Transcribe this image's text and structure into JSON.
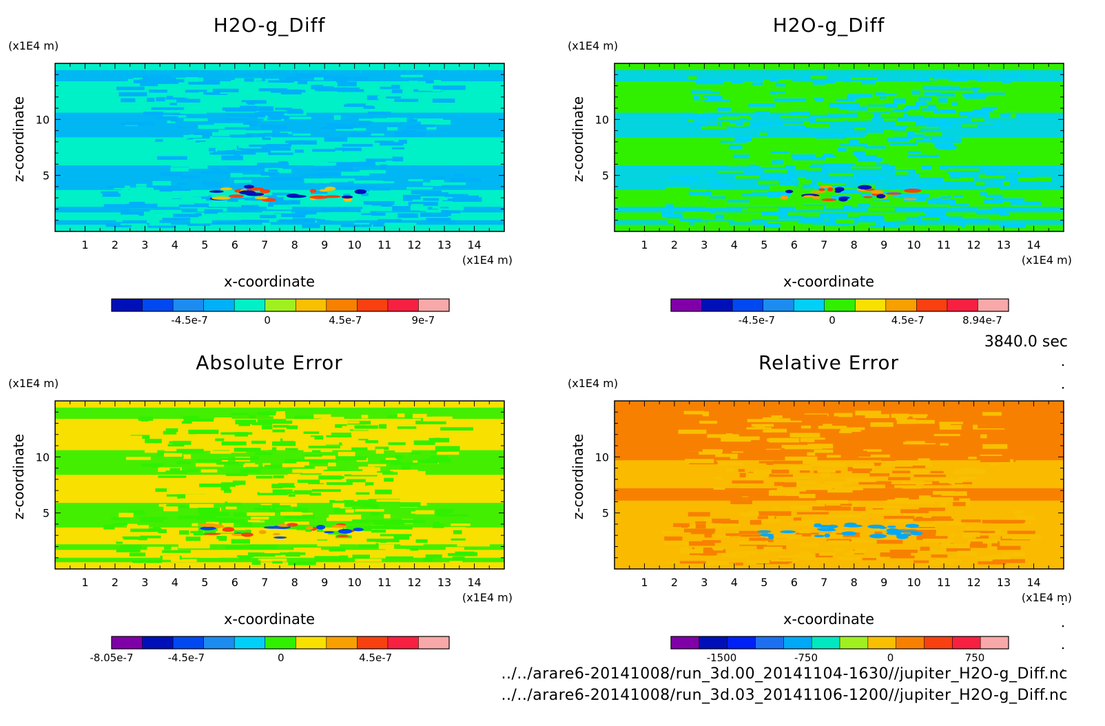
{
  "timestamp": "3840.0 sec",
  "files": [
    "../../arare6-20141008/run_3d.00_20141104-1630//jupiter_H2O-g_Diff.nc",
    "../../arare6-20141008/run_3d.03_20141106-1200//jupiter_H2O-g_Diff.nc"
  ],
  "chart_data": [
    {
      "type": "heatmap",
      "title": "H2O-g_Diff",
      "xlabel": "x-coordinate",
      "ylabel": "z-coordinate",
      "x_unit": "(x1E4 m)",
      "y_unit": "(x1E4 m)",
      "xlim": [
        0,
        15
      ],
      "ylim": [
        0,
        15
      ],
      "x_ticks": [
        "1",
        "2",
        "3",
        "4",
        "5",
        "6",
        "7",
        "8",
        "9",
        "10",
        "11",
        "12",
        "13",
        "14"
      ],
      "y_ticks": [
        "5",
        "10"
      ],
      "colorbar": {
        "colors": [
          "#0010b8",
          "#0048f0",
          "#1c8cf0",
          "#00b0f8",
          "#00f0c8",
          "#a0f020",
          "#f8c000",
          "#f88000",
          "#f84010",
          "#f82040",
          "#f8a8a8"
        ],
        "labels": [
          "-4.5e-7",
          "0",
          "4.5e-7",
          "9e-7"
        ],
        "label_values": [
          -4.5e-07,
          0,
          4.5e-07,
          9e-07
        ],
        "range": [
          -9e-07,
          1.05e-06
        ]
      },
      "pattern": {
        "background": "#00f0c8",
        "band": "#00b0f8",
        "stripe": "#00b0f8",
        "highlight": [
          "#f8c000",
          "#0010b8",
          "#f84010"
        ]
      }
    },
    {
      "type": "heatmap",
      "title": "H2O-g_Diff",
      "xlabel": "x-coordinate",
      "ylabel": "z-coordinate",
      "x_unit": "(x1E4 m)",
      "y_unit": "(x1E4 m)",
      "xlim": [
        0,
        15
      ],
      "ylim": [
        0,
        15
      ],
      "x_ticks": [
        "1",
        "2",
        "3",
        "4",
        "5",
        "6",
        "7",
        "8",
        "9",
        "10",
        "11",
        "12",
        "13",
        "14"
      ],
      "y_ticks": [
        "5",
        "10"
      ],
      "colorbar": {
        "colors": [
          "#8000a8",
          "#0010b8",
          "#0048f0",
          "#1c8cf0",
          "#00d0f8",
          "#30f000",
          "#f8e000",
          "#f8a000",
          "#f84010",
          "#f82040",
          "#f8a8a8"
        ],
        "labels": [
          "-4.5e-7",
          "0",
          "4.5e-7",
          "8.94e-7"
        ],
        "label_values": [
          -4.5e-07,
          0,
          4.5e-07,
          8.94e-07
        ],
        "range": [
          -9.6e-07,
          1.05e-06
        ]
      },
      "pattern": {
        "background": "#30f000",
        "band": "#00d0f8",
        "stripe": "#00d0f8",
        "highlight": [
          "#f8a000",
          "#0010b8",
          "#f84010"
        ]
      }
    },
    {
      "type": "heatmap",
      "title": "Absolute Error",
      "xlabel": "x-coordinate",
      "ylabel": "z-coordinate",
      "x_unit": "(x1E4 m)",
      "y_unit": "(x1E4 m)",
      "xlim": [
        0,
        15
      ],
      "ylim": [
        0,
        15
      ],
      "x_ticks": [
        "1",
        "2",
        "3",
        "4",
        "5",
        "6",
        "7",
        "8",
        "9",
        "10",
        "11",
        "12",
        "13",
        "14"
      ],
      "y_ticks": [
        "5",
        "10"
      ],
      "colorbar": {
        "colors": [
          "#8000a8",
          "#0010b8",
          "#0048f0",
          "#1c8cf0",
          "#00d0f8",
          "#30f000",
          "#f8e000",
          "#f8a000",
          "#f84010",
          "#f82040",
          "#f8a8a8"
        ],
        "labels": [
          "-8.05e-7",
          "-4.5e-7",
          "0",
          "4.5e-7"
        ],
        "label_values": [
          -8.05e-07,
          -4.5e-07,
          0,
          4.5e-07
        ],
        "range": [
          -8.05e-07,
          8e-07
        ]
      },
      "pattern": {
        "background": "#f8e000",
        "band": "#30f000",
        "stripe": "#30f000",
        "highlight": [
          "#f84010",
          "#0048f0",
          "#f8a000"
        ]
      }
    },
    {
      "type": "heatmap",
      "title": "Relative Error",
      "xlabel": "x-coordinate",
      "ylabel": "z-coordinate",
      "x_unit": "(x1E4 m)",
      "y_unit": "(x1E4 m)",
      "xlim": [
        0,
        15
      ],
      "ylim": [
        0,
        15
      ],
      "x_ticks": [
        "1",
        "2",
        "3",
        "4",
        "5",
        "6",
        "7",
        "8",
        "9",
        "10",
        "11",
        "12",
        "13",
        "14"
      ],
      "y_ticks": [
        "5",
        "10"
      ],
      "colorbar": {
        "colors": [
          "#8000a8",
          "#0010b8",
          "#0020f8",
          "#1c70f0",
          "#00a8f8",
          "#00e8c0",
          "#a0f020",
          "#f8c000",
          "#f88000",
          "#f84010",
          "#f82040",
          "#f8a8a8"
        ],
        "labels": [
          "-1500",
          "-750",
          "0",
          "750"
        ],
        "label_values": [
          -1500,
          -750,
          0,
          750
        ],
        "range": [
          -1950,
          1050
        ]
      },
      "pattern": {
        "background": "#f88000",
        "band": "#f8c000",
        "stripe": "#f8c000",
        "highlight": [
          "#00a8f8"
        ]
      }
    }
  ]
}
